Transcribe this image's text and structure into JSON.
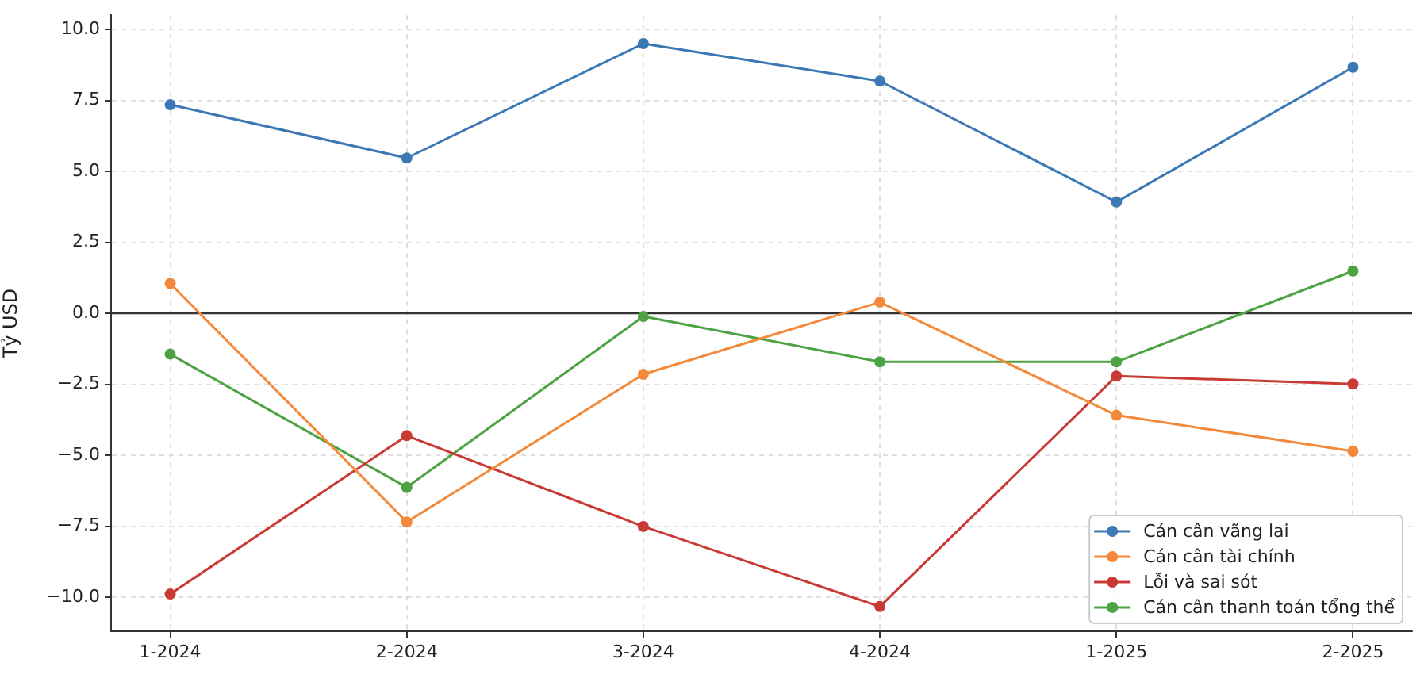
{
  "chart_data": {
    "type": "line",
    "ylabel": "Tỷ USD",
    "categories": [
      "1-2024",
      "2-2024",
      "3-2024",
      "4-2024",
      "1-2025",
      "2-2025"
    ],
    "series": [
      {
        "name": "Cán cân vãng lai",
        "color": "#3b78b4",
        "values": [
          7.35,
          5.47,
          9.5,
          8.18,
          3.92,
          8.67
        ]
      },
      {
        "name": "Cán cân tài chính",
        "color": "#f3893a",
        "values": [
          1.05,
          -7.35,
          -2.15,
          0.39,
          -3.59,
          -4.86
        ]
      },
      {
        "name": "Lỗi và sai sót",
        "color": "#c83a33",
        "values": [
          -9.89,
          -4.31,
          -7.51,
          -10.33,
          -2.21,
          -2.49
        ]
      },
      {
        "name": "Cán cân thanh toán tổng thể",
        "color": "#4da243",
        "values": [
          -1.44,
          -6.13,
          -0.11,
          -1.71,
          -1.71,
          1.49
        ]
      }
    ],
    "ylim": [
      -11.2,
      10.5
    ],
    "yticks": [
      {
        "value": -10,
        "label": "−10.0"
      },
      {
        "value": -7.5,
        "label": "−7.5"
      },
      {
        "value": -5,
        "label": "−5.0"
      },
      {
        "value": -2.5,
        "label": "−2.5"
      },
      {
        "value": 0,
        "label": "0.0"
      },
      {
        "value": 2.5,
        "label": "2.5"
      },
      {
        "value": 5,
        "label": "5.0"
      },
      {
        "value": 7.5,
        "label": "7.5"
      },
      {
        "value": 10,
        "label": "10.0"
      }
    ],
    "grid": true,
    "legend": "bottom right",
    "marker": "circle",
    "line_style": "solid",
    "ref_lines": [
      {
        "axis": "y",
        "value": 0,
        "color": "#333333"
      }
    ]
  }
}
